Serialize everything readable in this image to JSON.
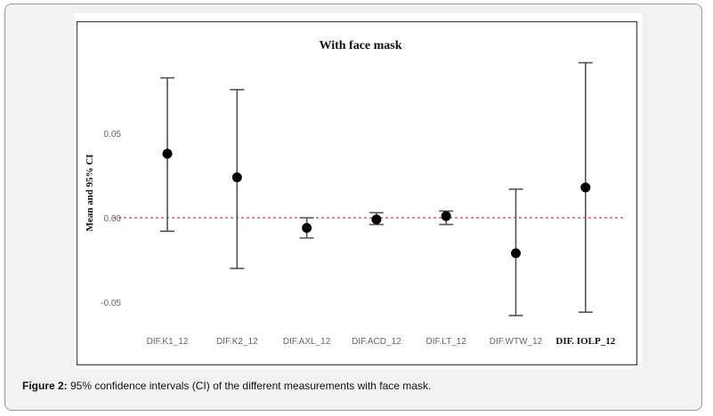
{
  "caption": {
    "label": "Figure 2:",
    "text": " 95% confidence intervals (CI) of the different measurements with face mask."
  },
  "chart_data": {
    "type": "errorbar",
    "title": "With face mask",
    "ylabel": "Mean and 95% CI",
    "xlabel": "",
    "ylim": [
      -0.087,
      0.116
    ],
    "yticks": [
      0.05,
      0.0,
      -0.05
    ],
    "ytick_labels": [
      "0.05",
      "0.00",
      "-0.05"
    ],
    "reference_line": {
      "y": 0,
      "color": "#e83a3a",
      "style": "dashed"
    },
    "categories": [
      "DIF.K1_12",
      "DIF.K2_12",
      "DIF.AXL_12",
      "DIF.ACD_12",
      "DIF.LT_12",
      "DIF.WTW_12",
      "DIF. IOLP_12"
    ],
    "means": [
      0.038,
      0.024,
      -0.006,
      -0.001,
      0.001,
      -0.021,
      0.018
    ],
    "lower": [
      -0.008,
      -0.03,
      -0.012,
      -0.004,
      -0.004,
      -0.058,
      -0.056
    ],
    "upper": [
      0.083,
      0.076,
      0.0,
      0.003,
      0.004,
      0.017,
      0.092
    ]
  }
}
